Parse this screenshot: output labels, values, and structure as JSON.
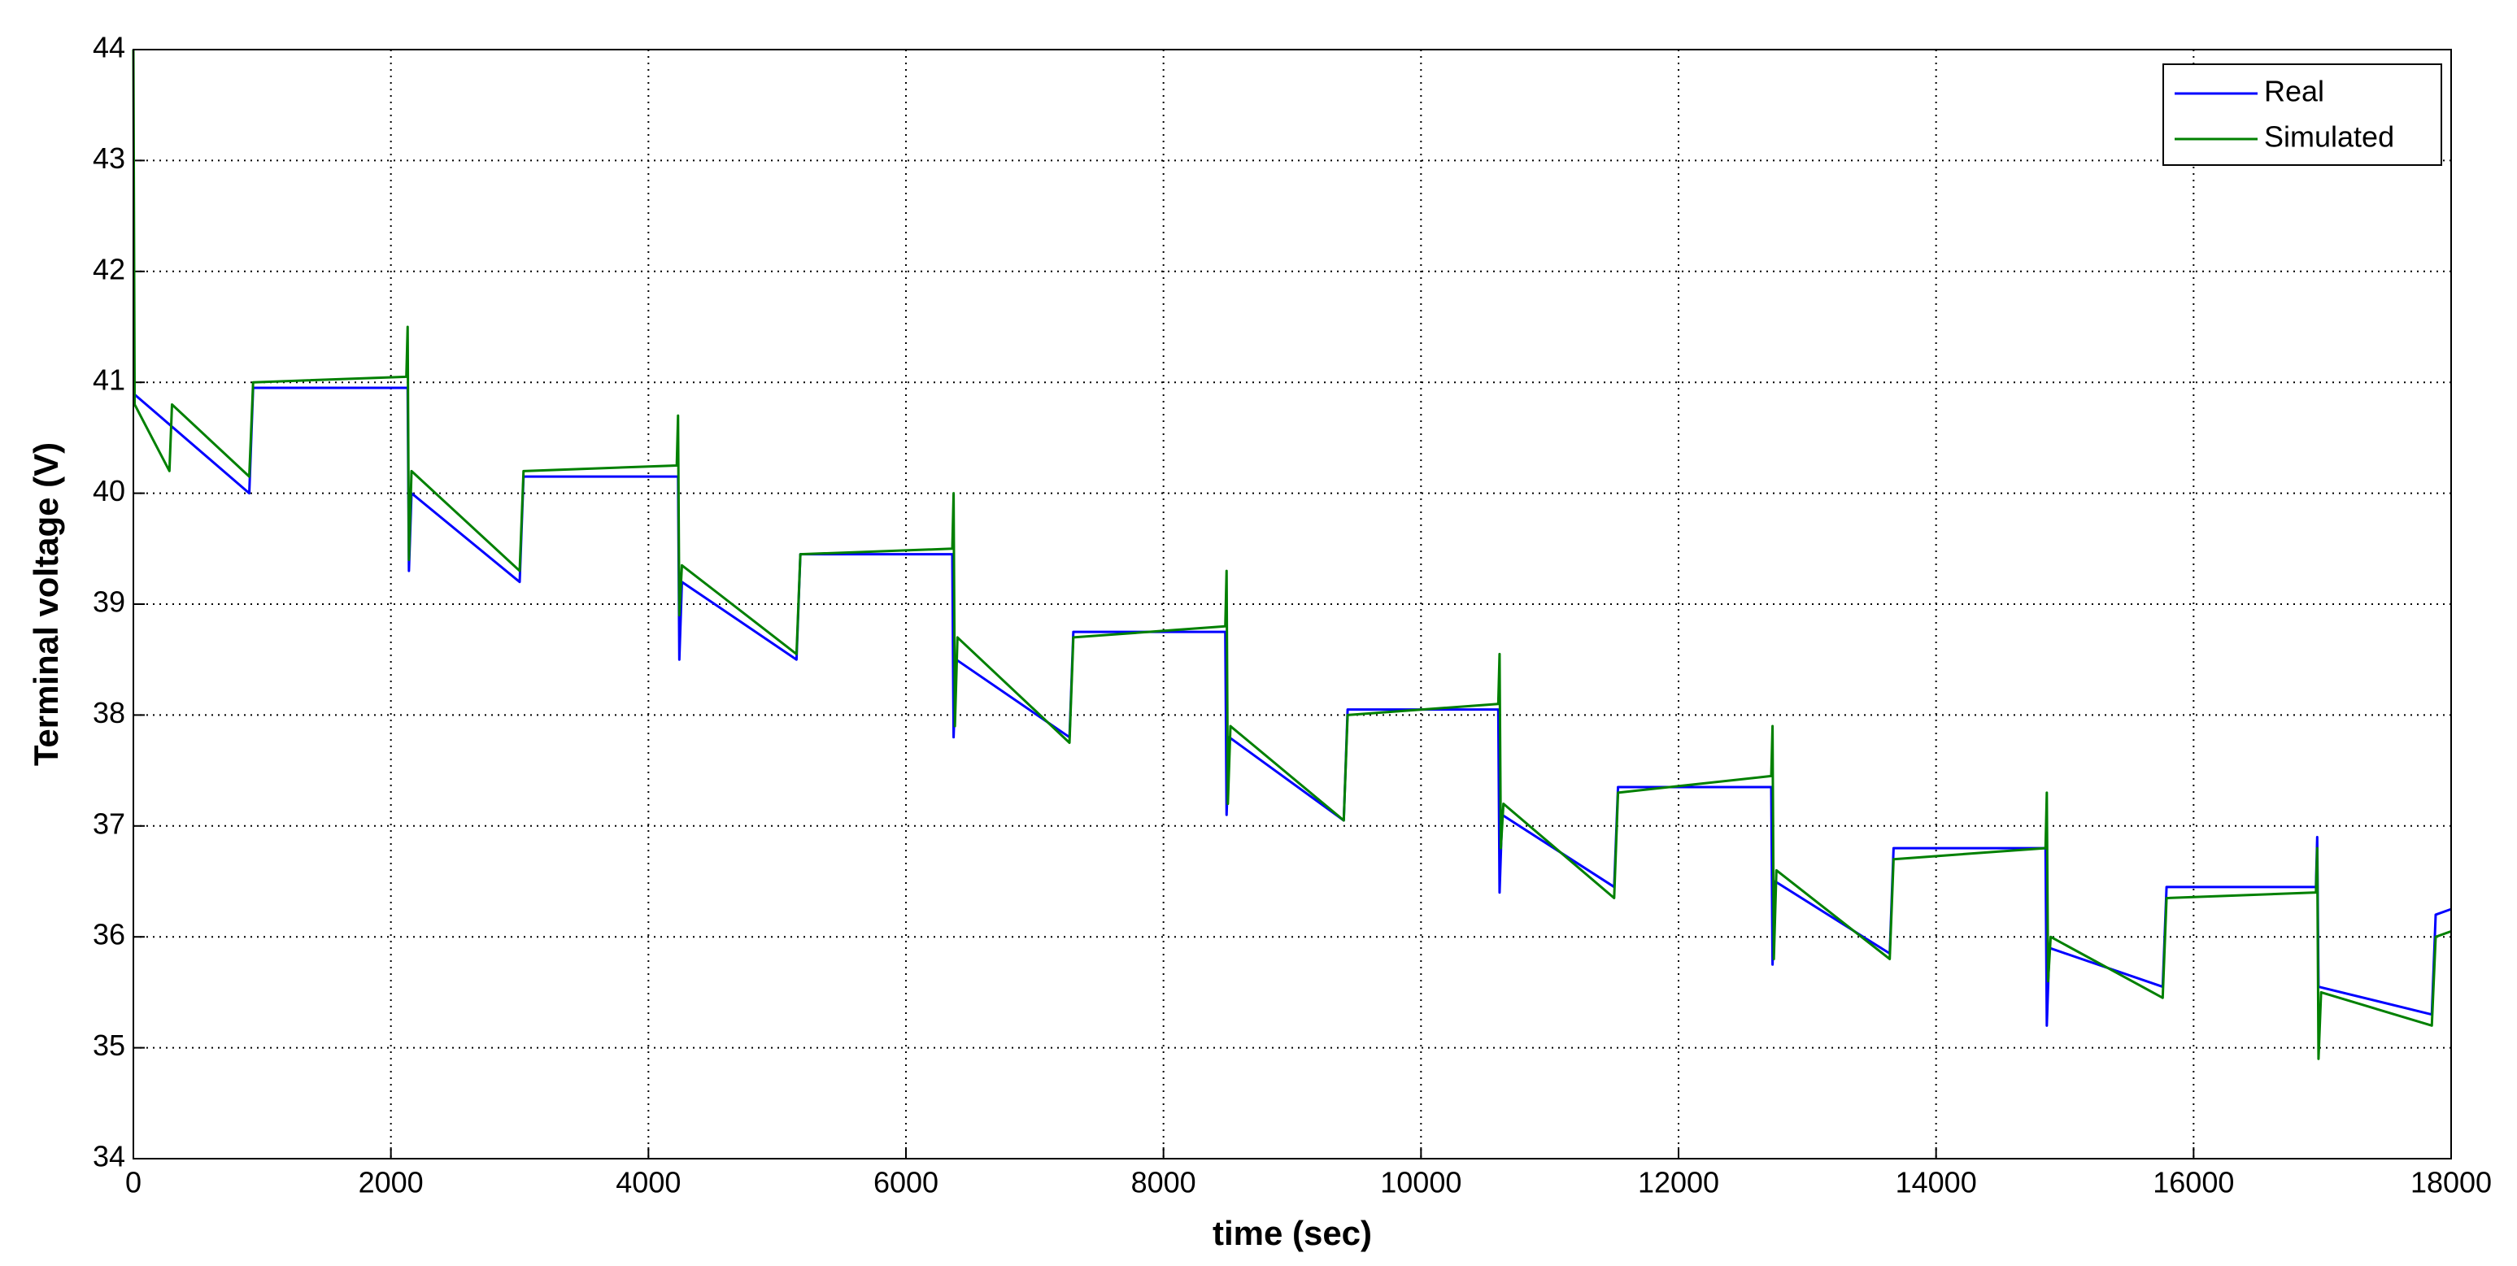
{
  "chart_data": {
    "type": "line",
    "xlabel": "time (sec)",
    "ylabel": "Terminal voltage (V)",
    "xlim": [
      0,
      18000
    ],
    "xticks": [
      0,
      2000,
      4000,
      6000,
      8000,
      10000,
      12000,
      14000,
      16000,
      18000
    ],
    "ylim": [
      34,
      44
    ],
    "yticks": [
      34,
      35,
      36,
      37,
      38,
      39,
      40,
      41,
      42,
      43,
      44
    ],
    "grid": true,
    "legend": "upper right",
    "series": [
      {
        "name": "Real",
        "color": "#0000ff",
        "x": [
          0,
          900,
          930,
          2130,
          2140,
          2160,
          3000,
          3030,
          4230,
          4240,
          4260,
          5150,
          5180,
          6360,
          6370,
          6390,
          7270,
          7300,
          8480,
          8490,
          8510,
          9400,
          9430,
          10600,
          10610,
          10630,
          11500,
          11530,
          12720,
          12730,
          12750,
          13640,
          13670,
          14850,
          14860,
          14880,
          15760,
          15790,
          16950,
          16960,
          16970,
          17850,
          17880,
          18000
        ],
        "values": [
          40.9,
          40.0,
          40.95,
          40.95,
          39.3,
          40.0,
          39.2,
          40.15,
          40.15,
          38.5,
          39.2,
          38.5,
          39.45,
          39.45,
          37.8,
          38.5,
          37.8,
          38.75,
          38.75,
          37.1,
          37.8,
          37.05,
          38.05,
          38.05,
          36.4,
          37.1,
          36.45,
          37.35,
          37.35,
          35.75,
          36.5,
          35.85,
          36.8,
          36.8,
          35.2,
          35.9,
          35.55,
          36.45,
          36.45,
          36.9,
          35.55,
          35.3,
          36.2,
          36.25
        ]
      },
      {
        "name": "Simulated",
        "color": "#008000",
        "x": [
          0,
          10,
          280,
          300,
          900,
          930,
          2120,
          2130,
          2140,
          2160,
          3000,
          3030,
          4220,
          4230,
          4240,
          4260,
          5150,
          5180,
          6360,
          6370,
          6380,
          6400,
          7270,
          7300,
          8480,
          8490,
          8500,
          8520,
          9400,
          9430,
          10600,
          10610,
          10620,
          10640,
          11500,
          11530,
          12720,
          12730,
          12740,
          12760,
          13640,
          13670,
          14850,
          14860,
          14870,
          14890,
          15760,
          15790,
          16950,
          16960,
          16970,
          16990,
          17850,
          17880,
          18000
        ],
        "values": [
          44.0,
          40.8,
          40.2,
          40.8,
          40.15,
          41.0,
          41.05,
          41.5,
          39.4,
          40.2,
          39.3,
          40.2,
          40.25,
          40.7,
          38.9,
          39.35,
          38.55,
          39.45,
          39.5,
          40.0,
          37.9,
          38.7,
          37.75,
          38.7,
          38.8,
          39.3,
          37.2,
          37.9,
          37.05,
          38.0,
          38.1,
          38.55,
          36.8,
          37.2,
          36.35,
          37.3,
          37.45,
          37.9,
          35.8,
          36.6,
          35.8,
          36.7,
          36.8,
          37.3,
          35.6,
          36.0,
          35.45,
          36.35,
          36.4,
          36.8,
          34.9,
          35.5,
          35.2,
          36.0,
          36.05
        ]
      }
    ]
  }
}
